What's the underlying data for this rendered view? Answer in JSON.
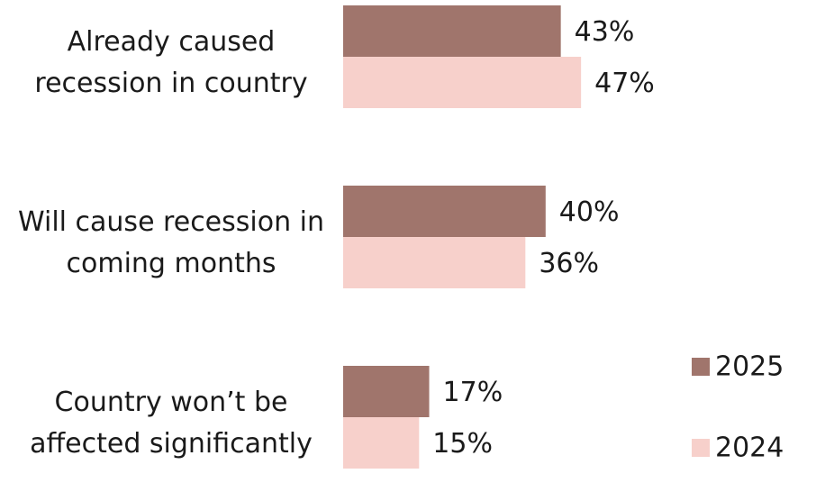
{
  "chart_data": {
    "type": "bar",
    "orientation": "horizontal",
    "categories": [
      "Already caused recession in country",
      "Will cause recession in coming months",
      "Country won’t be affected significantly"
    ],
    "series": [
      {
        "name": "2025",
        "color": "#a0756c",
        "values": [
          43,
          40,
          17
        ],
        "value_labels": [
          "43%",
          "40%",
          "17%"
        ]
      },
      {
        "name": "2024",
        "color": "#f7d0cb",
        "values": [
          47,
          36,
          15
        ],
        "value_labels": [
          "47%",
          "36%",
          "15%"
        ]
      }
    ],
    "legend": "right"
  }
}
